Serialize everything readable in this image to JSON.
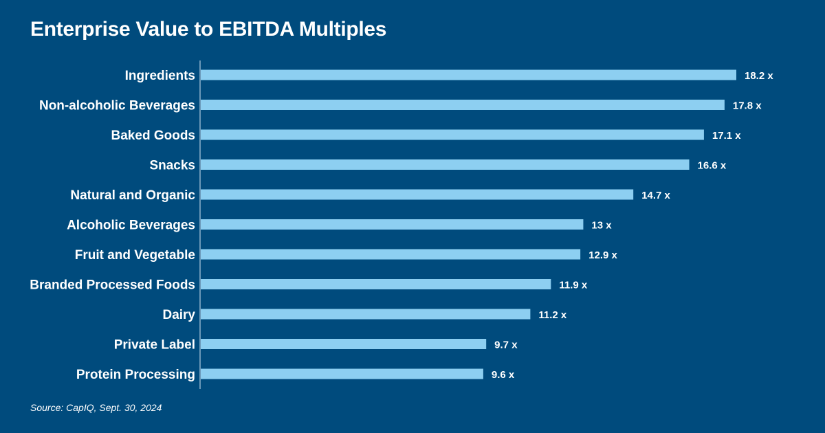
{
  "title": "Enterprise Value to EBITDA Multiples",
  "source": "Source: CapIQ, Sept. 30, 2024",
  "colors": {
    "background": "#004b7d",
    "bar": "#8dcff1",
    "text": "#ffffff",
    "axis": "#8fb3cc"
  },
  "chart_data": {
    "type": "bar",
    "orientation": "horizontal",
    "title": "Enterprise Value to EBITDA Multiples",
    "value_suffix": " x",
    "categories": [
      "Ingredients",
      "Non-alcoholic Beverages",
      "Baked Goods",
      "Snacks",
      "Natural and Organic",
      "Alcoholic Beverages",
      "Fruit and Vegetable",
      "Branded Processed Foods",
      "Dairy",
      "Private Label",
      "Protein Processing"
    ],
    "values": [
      18.2,
      17.8,
      17.1,
      16.6,
      14.7,
      13,
      12.9,
      11.9,
      11.2,
      9.7,
      9.6
    ],
    "value_labels": [
      "18.2 x",
      "17.8 x",
      "17.1 x",
      "16.6 x",
      "14.7 x",
      "13 x",
      "12.9 x",
      "11.9 x",
      "11.2 x",
      "9.7 x",
      "9.6 x"
    ],
    "xlim": [
      0,
      18.2
    ],
    "grid": false,
    "legend": "none"
  }
}
